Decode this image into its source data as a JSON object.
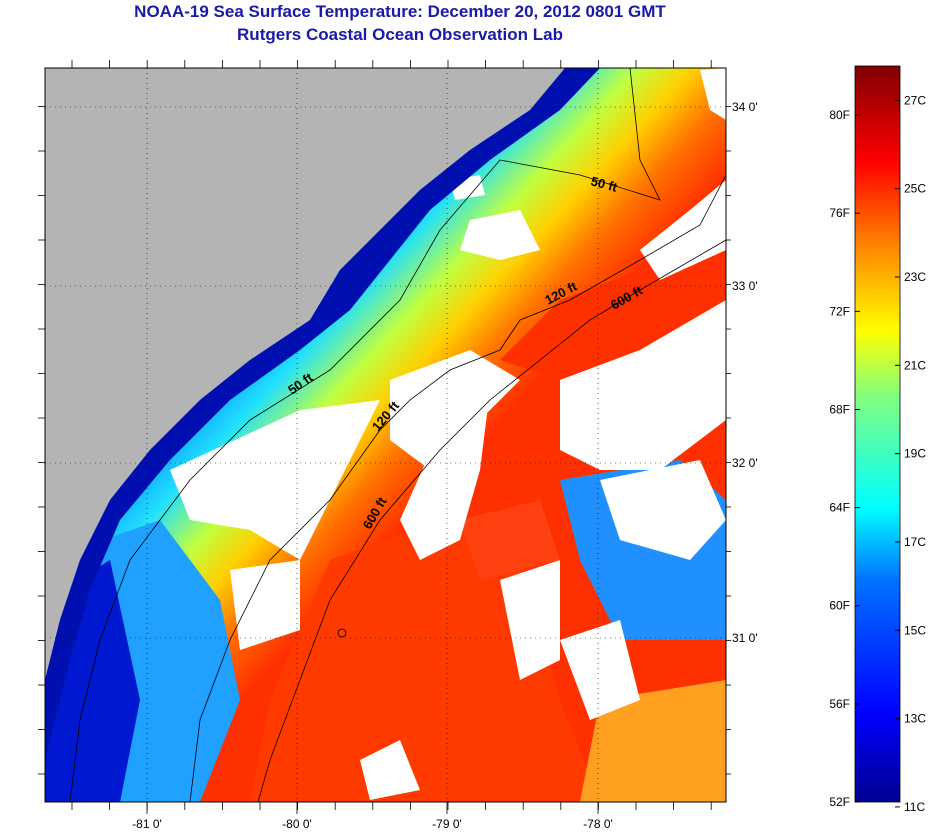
{
  "header": {
    "title": "NOAA-19 Sea Surface Temperature:  December 20, 2012 0801 GMT",
    "subtitle": "Rutgers Coastal Ocean Observation Lab"
  },
  "map": {
    "longitude_ticks": [
      "-81 0'",
      "-80 0'",
      "-79 0'",
      "-78 0'"
    ],
    "latitude_ticks": [
      "34 0'",
      "33 0'",
      "32 0'",
      "31 0'"
    ],
    "contour_labels": [
      "50 ft",
      "50 ft",
      "120 ft",
      "120 ft",
      "600 ft",
      "600 ft"
    ],
    "colors": {
      "land": "#b4b4b4",
      "cloud": "#ffffff"
    }
  },
  "colorbar": {
    "fahrenheit_labels": [
      "80F",
      "76F",
      "72F",
      "68F",
      "64F",
      "60F",
      "56F",
      "52F"
    ],
    "celsius_labels": [
      "27C",
      "25C",
      "23C",
      "21C",
      "19C",
      "17C",
      "15C",
      "13C",
      "11C"
    ],
    "range_f": [
      52,
      82
    ],
    "colors": [
      "#00008f",
      "#0000ff",
      "#0080ff",
      "#00ffff",
      "#80ff80",
      "#ffff00",
      "#ff8000",
      "#ff0000",
      "#800000"
    ]
  }
}
